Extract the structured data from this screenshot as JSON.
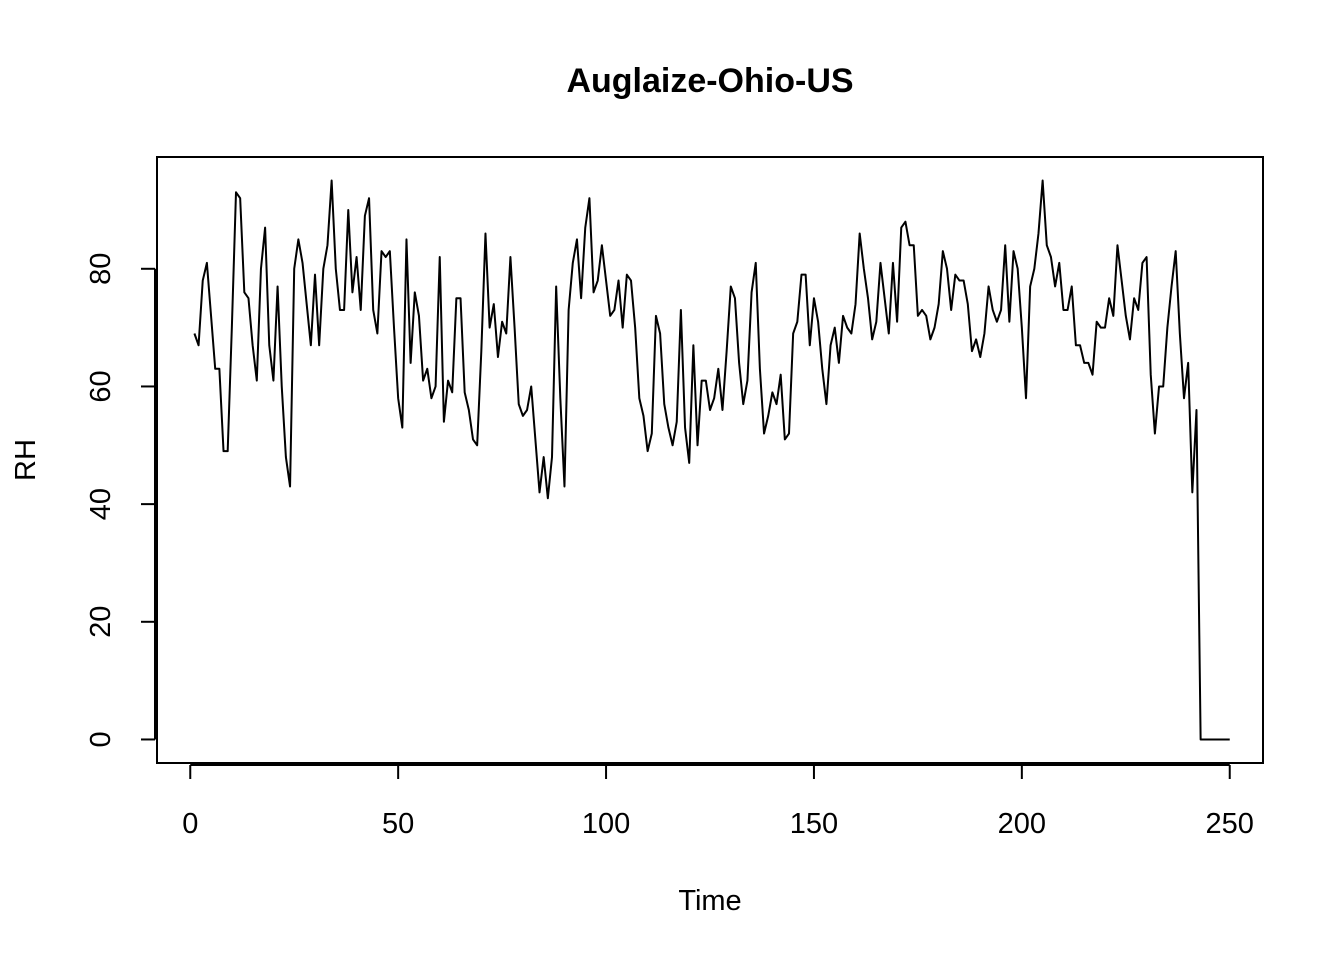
{
  "chart_data": {
    "type": "line",
    "title": "Auglaize-Ohio-US",
    "xlabel": "Time",
    "ylabel": "RH",
    "xlim": [
      -8,
      258
    ],
    "ylim": [
      -4,
      99
    ],
    "xticks": [
      0,
      50,
      100,
      150,
      200,
      250
    ],
    "yticks": [
      0,
      20,
      40,
      60,
      80
    ],
    "grid": false,
    "legend": "none",
    "line_color": "#000000",
    "series": [
      {
        "x_start": 1,
        "values": [
          69,
          67,
          78,
          81,
          72,
          63,
          63,
          49,
          49,
          70,
          93,
          92,
          76,
          75,
          67,
          61,
          80,
          87,
          67,
          61,
          77,
          60,
          48,
          43,
          80,
          85,
          81,
          74,
          67,
          79,
          67,
          80,
          84,
          95,
          80,
          73,
          73,
          90,
          76,
          82,
          73,
          89,
          92,
          73,
          69,
          83,
          82,
          83,
          70,
          58,
          53,
          85,
          64,
          76,
          72,
          61,
          63,
          58,
          60,
          82,
          54,
          61,
          59,
          75,
          75,
          59,
          56,
          51,
          50,
          66,
          86,
          70,
          74,
          65,
          71,
          69,
          82,
          70,
          57,
          55,
          56,
          60,
          51,
          42,
          48,
          41,
          48,
          77,
          58,
          43,
          73,
          81,
          85,
          75,
          87,
          92,
          76,
          78,
          84,
          78,
          72,
          73,
          78,
          70,
          79,
          78,
          70,
          58,
          55,
          49,
          52,
          72,
          69,
          57,
          53,
          50,
          54,
          73,
          53,
          47,
          67,
          50,
          61,
          61,
          56,
          58,
          63,
          56,
          66,
          77,
          75,
          64,
          57,
          61,
          76,
          81,
          63,
          52,
          55,
          59,
          57,
          62,
          51,
          52,
          69,
          71,
          79,
          79,
          67,
          75,
          71,
          63,
          57,
          67,
          70,
          64,
          72,
          70,
          69,
          74,
          86,
          80,
          75,
          68,
          71,
          81,
          75,
          69,
          81,
          71,
          87,
          88,
          84,
          84,
          72,
          73,
          72,
          68,
          70,
          74,
          83,
          80,
          73,
          79,
          78,
          78,
          74,
          66,
          68,
          65,
          69,
          77,
          73,
          71,
          73,
          84,
          71,
          83,
          80,
          70,
          58,
          77,
          80,
          86,
          95,
          84,
          82,
          77,
          81,
          73,
          73,
          77,
          67,
          67,
          64,
          64,
          62,
          71,
          70,
          70,
          75,
          72,
          84,
          78,
          72,
          68,
          75,
          73,
          81,
          82,
          62,
          52,
          60,
          60,
          70,
          77,
          83,
          69,
          58,
          64,
          42,
          56,
          0,
          0,
          0,
          0,
          0,
          0,
          0,
          0
        ]
      }
    ]
  }
}
